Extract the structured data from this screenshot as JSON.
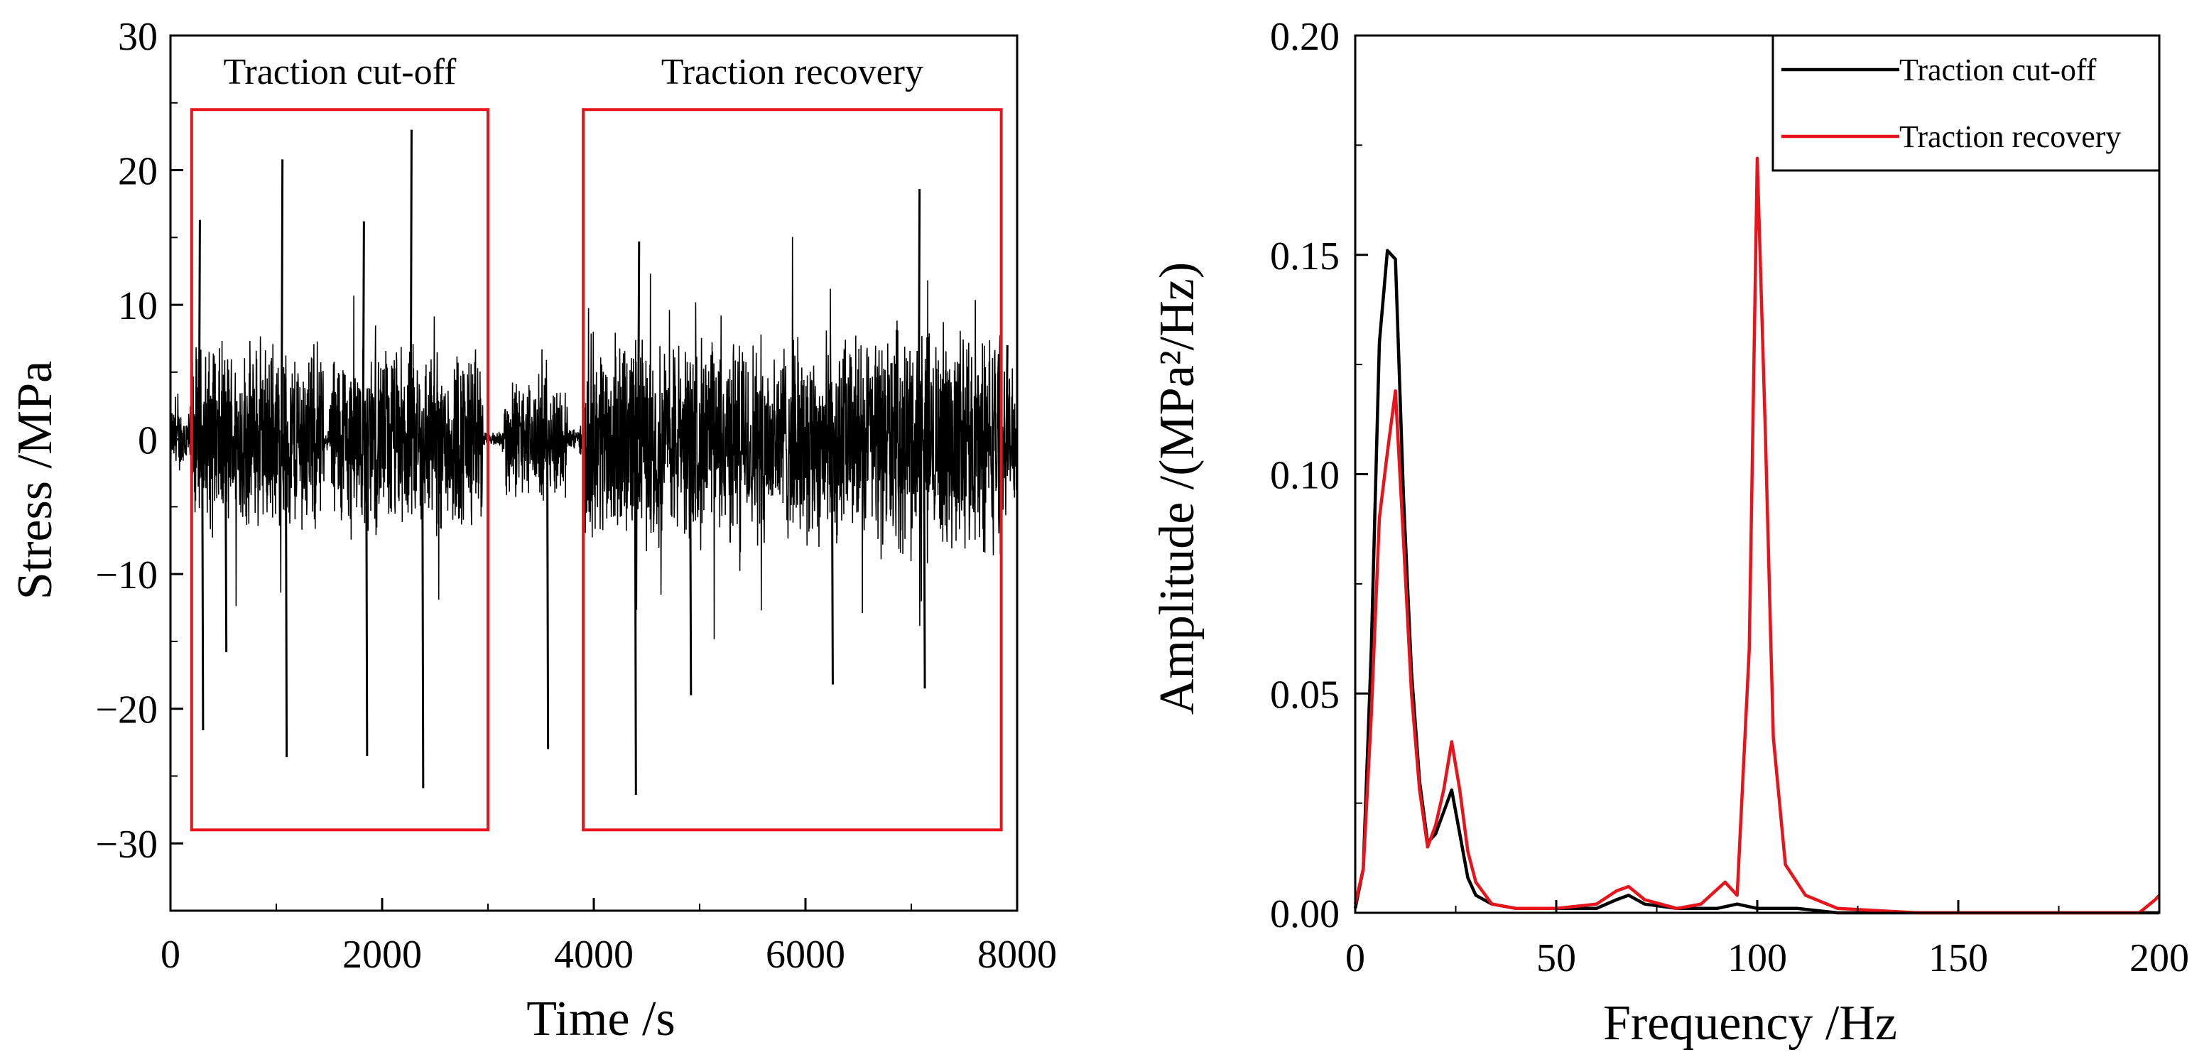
{
  "chart_data": [
    {
      "type": "line",
      "xlabel": "Time  /s",
      "ylabel": "Stress /MPa",
      "xlim": [
        0,
        8000
      ],
      "ylim": [
        -35,
        30
      ],
      "xticks": [
        "0",
        "2000",
        "4000",
        "6000",
        "8000"
      ],
      "yticks": [
        "30",
        "20",
        "10",
        "0",
        "−10",
        "−20",
        "−30"
      ],
      "grid": false,
      "series_color": "#000000",
      "highlight_color": "#e8141b",
      "regions": [
        {
          "label": "Traction cut-off",
          "x": [
            200,
            3000
          ],
          "y": [
            -29,
            24.5
          ]
        },
        {
          "label": "Traction recovery",
          "x": [
            3900,
            7850
          ],
          "y": [
            -29,
            24.5
          ]
        }
      ],
      "signal": {
        "x_range": [
          0,
          8000
        ],
        "envelope": [
          {
            "x": [
              0,
              200
            ],
            "amp": 2
          },
          {
            "x": [
              200,
              1450
            ],
            "amp": 5.5
          },
          {
            "x": [
              1450,
              1500
            ],
            "amp": 0.5
          },
          {
            "x": [
              1500,
              2950
            ],
            "amp": 5.5
          },
          {
            "x": [
              2950,
              3050
            ],
            "amp": 0.4
          },
          {
            "x": [
              3050,
              3150
            ],
            "amp": 0.6
          },
          {
            "x": [
              3150,
              3750
            ],
            "amp": 3.5
          },
          {
            "x": [
              3750,
              3900
            ],
            "amp": 0.8
          },
          {
            "x": [
              3900,
              6600
            ],
            "amp": 6
          },
          {
            "x": [
              6600,
              7850
            ],
            "amp": 6.5
          },
          {
            "x": [
              7850,
              8000
            ],
            "amp": 4
          }
        ],
        "spikes": [
          {
            "x": 270,
            "y": 16.3
          },
          {
            "x": 300,
            "y": -21.6
          },
          {
            "x": 520,
            "y": -15.8
          },
          {
            "x": 1050,
            "y": 20.8
          },
          {
            "x": 1090,
            "y": -23.6
          },
          {
            "x": 1820,
            "y": 16.2
          },
          {
            "x": 1850,
            "y": -23.5
          },
          {
            "x": 2270,
            "y": 23
          },
          {
            "x": 2380,
            "y": -25.9
          },
          {
            "x": 3560,
            "y": -23
          },
          {
            "x": 4390,
            "y": -26.4
          },
          {
            "x": 4420,
            "y": 14.7
          },
          {
            "x": 4910,
            "y": -19
          },
          {
            "x": 6250,
            "y": -18.2
          },
          {
            "x": 7070,
            "y": 18.6
          },
          {
            "x": 7120,
            "y": -18.5
          },
          {
            "x": 7900,
            "y": 7
          }
        ]
      }
    },
    {
      "type": "line",
      "xlabel": "Frequency  /Hz",
      "ylabel": "Amplitude /(MPa²/Hz)",
      "xlim": [
        0,
        200
      ],
      "ylim": [
        0,
        0.2
      ],
      "xticks": [
        "0",
        "50",
        "100",
        "150",
        "200"
      ],
      "yticks": [
        "0.20",
        "0.15",
        "0.10",
        "0.05",
        "0.00"
      ],
      "grid": false,
      "legend_position": "top-right",
      "series": [
        {
          "name": "Traction cut-off",
          "color": "#000000",
          "x": [
            0,
            2,
            4,
            6,
            8,
            10,
            12,
            14,
            16,
            18,
            20,
            22,
            24,
            26,
            28,
            30,
            34,
            40,
            50,
            60,
            65,
            68,
            72,
            80,
            90,
            95,
            100,
            110,
            120,
            150,
            200
          ],
          "y": [
            0.001,
            0.01,
            0.06,
            0.13,
            0.151,
            0.149,
            0.095,
            0.055,
            0.03,
            0.016,
            0.018,
            0.023,
            0.028,
            0.018,
            0.008,
            0.004,
            0.002,
            0.001,
            0.001,
            0.001,
            0.003,
            0.004,
            0.002,
            0.001,
            0.001,
            0.002,
            0.001,
            0.001,
            0.0,
            0.0,
            0.0
          ]
        },
        {
          "name": "Traction recovery",
          "color": "#e8141b",
          "x": [
            0,
            2,
            4,
            6,
            8,
            10,
            12,
            14,
            16,
            18,
            20,
            22,
            24,
            26,
            28,
            30,
            34,
            40,
            50,
            60,
            65,
            68,
            72,
            80,
            86,
            92,
            95,
            98,
            100,
            102,
            104,
            107,
            112,
            120,
            140,
            160,
            180,
            195,
            199,
            200
          ],
          "y": [
            0.002,
            0.01,
            0.045,
            0.09,
            0.105,
            0.119,
            0.085,
            0.05,
            0.028,
            0.015,
            0.02,
            0.028,
            0.039,
            0.028,
            0.014,
            0.007,
            0.002,
            0.001,
            0.001,
            0.002,
            0.005,
            0.006,
            0.003,
            0.001,
            0.002,
            0.007,
            0.004,
            0.06,
            0.172,
            0.11,
            0.04,
            0.011,
            0.004,
            0.001,
            0.0,
            0.0,
            0.0,
            0.0,
            0.003,
            0.004
          ]
        }
      ]
    }
  ]
}
